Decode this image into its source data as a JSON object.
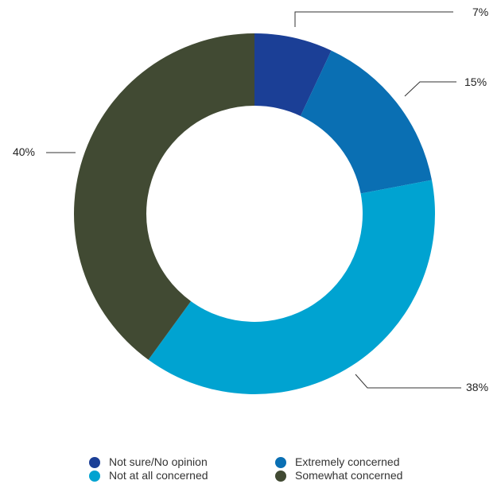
{
  "chart_data": {
    "type": "pie",
    "donut": true,
    "categories": [
      "Not sure/No opinion",
      "Extremely concerned",
      "Not at all concerned",
      "Somewhat concerned"
    ],
    "values": [
      7,
      15,
      38,
      40
    ],
    "labels": [
      "7%",
      "15%",
      "38%",
      "40%"
    ],
    "colors": [
      "#1b3f96",
      "#0a6fb3",
      "#00a3d1",
      "#414a33"
    ],
    "title": "",
    "legend_position": "bottom"
  },
  "legend": {
    "items": [
      {
        "label": "Not sure/No opinion",
        "color": "#1b3f96"
      },
      {
        "label": "Extremely concerned",
        "color": "#0a6fb3"
      },
      {
        "label": "Not at all concerned",
        "color": "#00a3d1"
      },
      {
        "label": "Somewhat concerned",
        "color": "#414a33"
      }
    ]
  }
}
